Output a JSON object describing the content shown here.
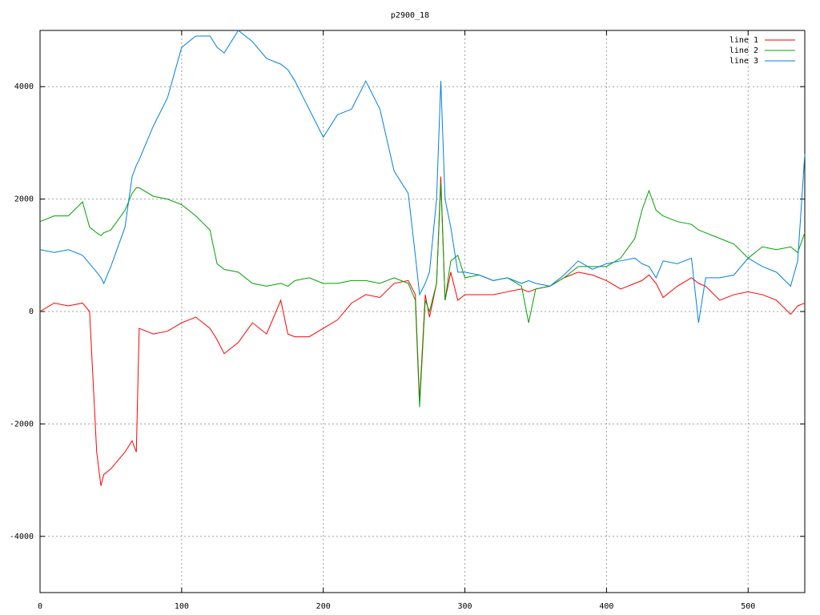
{
  "chart_data": {
    "type": "line",
    "title": "p2900_18",
    "x": [
      0,
      10,
      20,
      30,
      35,
      40,
      43,
      45,
      50,
      60,
      65,
      68,
      70,
      80,
      90,
      100,
      110,
      120,
      125,
      130,
      140,
      150,
      160,
      170,
      175,
      180,
      190,
      200,
      210,
      220,
      230,
      240,
      250,
      260,
      265,
      268,
      272,
      275,
      280,
      283,
      286,
      290,
      295,
      300,
      310,
      320,
      330,
      340,
      345,
      350,
      360,
      370,
      380,
      390,
      400,
      410,
      420,
      425,
      430,
      435,
      440,
      450,
      460,
      465,
      470,
      480,
      490,
      500,
      510,
      520,
      530,
      535,
      540
    ],
    "series": [
      {
        "name": "line 1",
        "color": "#ff0000",
        "values": [
          0,
          150,
          100,
          150,
          0,
          -2500,
          -3100,
          -2900,
          -2800,
          -2500,
          -2300,
          -2500,
          -300,
          -400,
          -350,
          -200,
          -100,
          -300,
          -500,
          -750,
          -550,
          -200,
          -400,
          200,
          -400,
          -450,
          -450,
          -300,
          -150,
          150,
          300,
          250,
          500,
          550,
          300,
          -1600,
          300,
          -100,
          500,
          2400,
          200,
          700,
          200,
          300,
          300,
          300,
          350,
          400,
          350,
          400,
          450,
          600,
          700,
          650,
          550,
          400,
          500,
          550,
          650,
          500,
          250,
          450,
          600,
          500,
          450,
          200,
          300,
          350,
          300,
          200,
          -50,
          100,
          150
        ]
      },
      {
        "name": "line 2",
        "color": "#00a000",
        "values": [
          1600,
          1700,
          1700,
          1950,
          1500,
          1400,
          1350,
          1400,
          1450,
          1800,
          2100,
          2200,
          2200,
          2050,
          2000,
          1900,
          1700,
          1450,
          850,
          750,
          700,
          500,
          450,
          500,
          450,
          550,
          600,
          500,
          500,
          550,
          550,
          500,
          600,
          500,
          200,
          -1700,
          200,
          0,
          500,
          2300,
          200,
          900,
          1000,
          600,
          650,
          550,
          600,
          450,
          -200,
          400,
          450,
          600,
          800,
          800,
          800,
          950,
          1300,
          1800,
          2150,
          1800,
          1700,
          1600,
          1550,
          1450,
          1400,
          1300,
          1200,
          950,
          1150,
          1100,
          1150,
          1050,
          1400
        ]
      },
      {
        "name": "line 3",
        "color": "#0080e0",
        "values": [
          1100,
          1050,
          1100,
          1000,
          850,
          700,
          600,
          500,
          800,
          1500,
          2400,
          2600,
          2700,
          3300,
          3800,
          4700,
          4900,
          4900,
          4700,
          4600,
          5000,
          4800,
          4500,
          4400,
          4300,
          4100,
          3600,
          3100,
          3500,
          3600,
          4100,
          3600,
          2500,
          2100,
          1000,
          300,
          500,
          700,
          2000,
          4100,
          2000,
          1500,
          700,
          700,
          650,
          550,
          600,
          500,
          550,
          500,
          450,
          650,
          900,
          750,
          850,
          900,
          950,
          850,
          800,
          600,
          900,
          850,
          950,
          -200,
          600,
          600,
          650,
          950,
          800,
          700,
          450,
          900,
          2800
        ]
      }
    ],
    "xlim": [
      0,
      540
    ],
    "ylim": [
      -5000,
      5000
    ],
    "xticks": [
      0,
      100,
      200,
      300,
      400,
      500
    ],
    "yticks": [
      -4000,
      -2000,
      0,
      2000,
      4000
    ],
    "grid": true,
    "legend": "top-right"
  }
}
